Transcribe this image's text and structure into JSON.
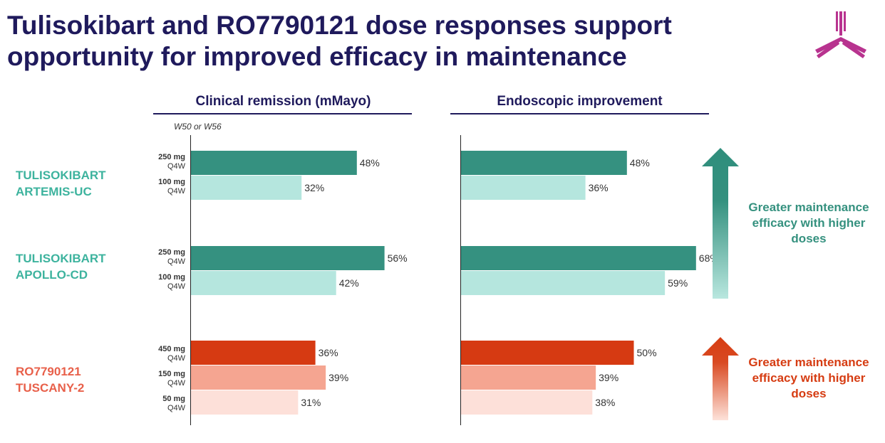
{
  "title": "Tulisokibart and RO7790121 dose responses support opportunity for improved efficacy in maintenance",
  "panels": {
    "left": "Clinical remission (mMayo)",
    "right": "Endoscopic improvement",
    "note": "W50 or W56"
  },
  "groups": [
    {
      "name": "TULISOKIBART",
      "study": "ARTEMIS-UC",
      "color": "#3db39e"
    },
    {
      "name": "TULISOKIBART",
      "study": "APOLLO-CD",
      "color": "#3db39e"
    },
    {
      "name": "RO7790121",
      "study": "TUSCANY-2",
      "color": "#e8604a"
    }
  ],
  "doses": [
    {
      "amount": "250 mg",
      "freq": "Q4W"
    },
    {
      "amount": "100 mg",
      "freq": "Q4W"
    },
    {
      "amount": "250 mg",
      "freq": "Q4W"
    },
    {
      "amount": "100 mg",
      "freq": "Q4W"
    },
    {
      "amount": "450 mg",
      "freq": "Q4W"
    },
    {
      "amount": "150 mg",
      "freq": "Q4W"
    },
    {
      "amount": "50 mg",
      "freq": "Q4W"
    }
  ],
  "legend": {
    "green": "Greater maintenance efficacy with higher doses",
    "red": "Greater maintenance efficacy with higher doses",
    "green_color": "#35917f",
    "red_color": "#d63c12"
  },
  "chart_data": [
    {
      "type": "bar",
      "orientation": "horizontal",
      "title": "Clinical remission (mMayo)",
      "categories": [
        "ARTEMIS-UC 250 mg Q4W",
        "ARTEMIS-UC 100 mg Q4W",
        "APOLLO-CD 250 mg Q4W",
        "APOLLO-CD 100 mg Q4W",
        "TUSCANY-2 450 mg Q4W",
        "TUSCANY-2 150 mg Q4W",
        "TUSCANY-2 50 mg Q4W"
      ],
      "values": [
        48,
        32,
        56,
        42,
        36,
        39,
        31
      ],
      "labels": [
        "48%",
        "32%",
        "56%",
        "42%",
        "36%",
        "39%",
        "31%"
      ],
      "colors": [
        "#359180",
        "#b5e6de",
        "#359180",
        "#b5e6de",
        "#d63a12",
        "#f5a591",
        "#fde0d9"
      ],
      "unit": "%",
      "xlim": [
        0,
        100
      ]
    },
    {
      "type": "bar",
      "orientation": "horizontal",
      "title": "Endoscopic improvement",
      "categories": [
        "ARTEMIS-UC 250 mg Q4W",
        "ARTEMIS-UC 100 mg Q4W",
        "APOLLO-CD 250 mg Q4W",
        "APOLLO-CD 100 mg Q4W",
        "TUSCANY-2 450 mg Q4W",
        "TUSCANY-2 150 mg Q4W",
        "TUSCANY-2 50 mg Q4W"
      ],
      "values": [
        48,
        36,
        68,
        59,
        50,
        39,
        38
      ],
      "labels": [
        "48%",
        "36%",
        "68%",
        "59%",
        "50%",
        "39%",
        "38%"
      ],
      "colors": [
        "#359180",
        "#b5e6de",
        "#359180",
        "#b5e6de",
        "#d63a12",
        "#f5a591",
        "#fde0d9"
      ],
      "unit": "%",
      "xlim": [
        0,
        100
      ]
    }
  ]
}
